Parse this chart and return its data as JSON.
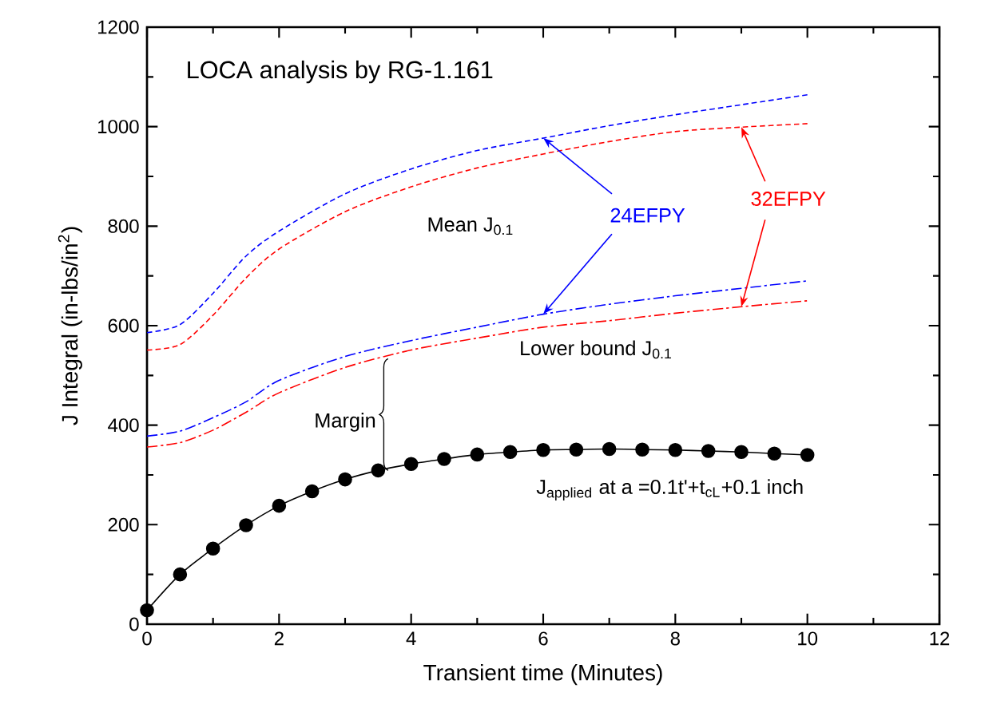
{
  "chart_data": {
    "type": "line",
    "xlabel": "Transient time (Minutes)",
    "ylabel": "J Integral (in-lbs/in$^{2}$)",
    "xlim": [
      0,
      12
    ],
    "xticks": [
      0,
      2,
      4,
      6,
      8,
      10,
      12
    ],
    "ylim": [
      0,
      1200
    ],
    "yticks": [
      0,
      200,
      400,
      600,
      800,
      1000,
      1200
    ],
    "x": [
      0,
      0.5,
      1,
      1.5,
      2,
      3,
      4,
      5,
      6,
      7,
      8,
      9,
      10
    ],
    "series": [
      {
        "color": "#0000ff",
        "line_style": "dashed",
        "values": [
          586,
          602,
          665,
          740,
          790,
          865,
          915,
          952,
          977,
          1002,
          1024,
          1044,
          1064
        ]
      },
      {
        "color": "#ff0000",
        "line_style": "dashed",
        "values": [
          551,
          562,
          621,
          696,
          754,
          829,
          879,
          917,
          945,
          970,
          990,
          999,
          1006
        ]
      },
      {
        "color": "#0000ff",
        "line_style": "dashdot",
        "values": [
          378,
          388,
          415,
          447,
          490,
          538,
          570,
          597,
          623,
          643,
          660,
          675,
          690
        ]
      },
      {
        "color": "#ff0000",
        "line_style": "dashdot",
        "values": [
          356,
          365,
          390,
          426,
          465,
          516,
          551,
          575,
          597,
          610,
          625,
          638,
          650
        ]
      },
      {
        "color": "#000000",
        "line_style": "solid",
        "marker": "circle",
        "x": [
          0,
          0.5,
          1,
          1.5,
          2,
          2.5,
          3,
          3.5,
          4,
          4.5,
          5,
          5.5,
          6,
          6.5,
          7,
          7.5,
          8,
          8.5,
          9,
          9.5,
          10
        ],
        "values": [
          28,
          100,
          152,
          199,
          238,
          267,
          291,
          309,
          322,
          332,
          341,
          346,
          350,
          351,
          352,
          351,
          350,
          348,
          346,
          343,
          340
        ]
      }
    ],
    "annotations": [
      "LOCA analysis by RG-1.161",
      "Mean J$_{0.1}$",
      {
        "text": "24EFPY",
        "x": 6,
        "y": 977
      },
      {
        "text": "32EFPY",
        "x": 9,
        "y": 999
      },
      "Lower bound J$_{0.1}$",
      {
        "text": "Margin",
        "x": 3.5,
        "y": 309
      },
      "J$_{applied}$ at a =0.1t'+t$_{cL}$+0.1 inch"
    ]
  }
}
